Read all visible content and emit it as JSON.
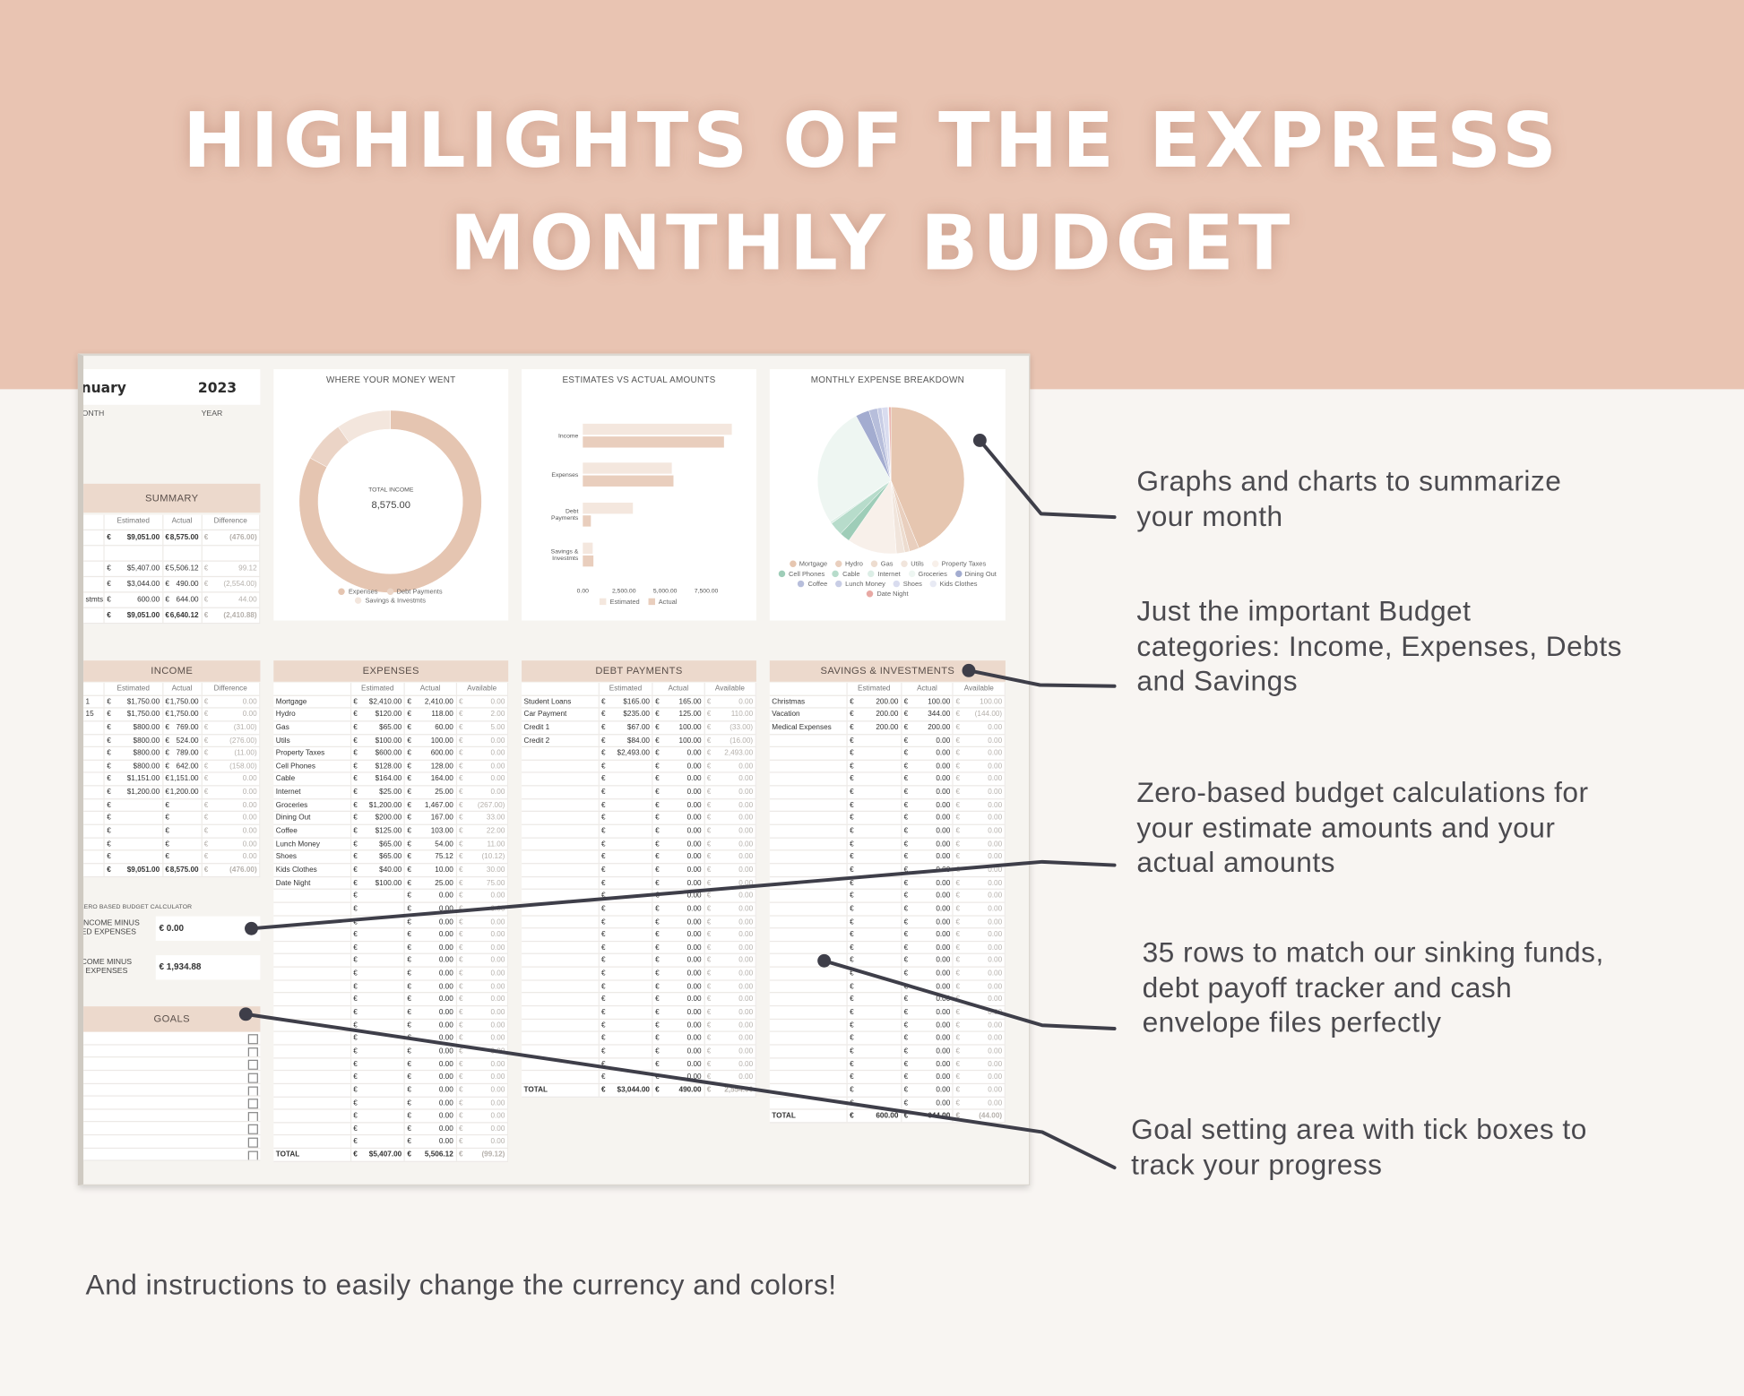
{
  "header": {
    "title_lines": [
      "HIGHLIGHTS OF THE EXPRESS",
      "MONTHLY BUDGET"
    ]
  },
  "sheet": {
    "currency": "€",
    "month": "nuary",
    "month_label": "MONTH",
    "year": "2023",
    "year_label": "YEAR",
    "summary": {
      "title": "SUMMARY",
      "columns": [
        "",
        "Estimated",
        "Actual",
        "Difference"
      ],
      "rows": [
        [
          "",
          "$9,051.00",
          "8,575.00",
          "(476.00)"
        ],
        null,
        [
          "",
          "$5,407.00",
          "5,506.12",
          "99.12"
        ],
        [
          "",
          "$3,044.00",
          "490.00",
          "(2,554.00)"
        ],
        [
          "stmts",
          "600.00",
          "644.00",
          "44.00"
        ],
        [
          "",
          "$9,051.00",
          "6,640.12",
          "(2,410.88)"
        ]
      ]
    },
    "income": {
      "title": "INCOME",
      "columns": [
        "",
        "Estimated",
        "Actual",
        "Difference"
      ],
      "rows": [
        [
          "1",
          "$1,750.00",
          "1,750.00",
          "0.00"
        ],
        [
          "15",
          "$1,750.00",
          "1,750.00",
          "0.00"
        ],
        [
          "",
          "$800.00",
          "769.00",
          "(31.00)"
        ],
        [
          "",
          "$800.00",
          "524.00",
          "(276.00)"
        ],
        [
          "",
          "$800.00",
          "789.00",
          "(11.00)"
        ],
        [
          "",
          "$800.00",
          "642.00",
          "(158.00)"
        ],
        [
          "",
          "$1,151.00",
          "1,151.00",
          "0.00"
        ],
        [
          "",
          "$1,200.00",
          "1,200.00",
          "0.00"
        ],
        [
          "",
          "",
          "",
          "0.00"
        ],
        [
          "",
          "",
          "",
          "0.00"
        ],
        [
          "",
          "",
          "",
          "0.00"
        ],
        [
          "",
          "",
          "",
          "0.00"
        ],
        [
          "",
          "",
          "",
          "0.00"
        ]
      ],
      "total": [
        "",
        "$9,051.00",
        "8,575.00",
        "(476.00)"
      ]
    },
    "zero_based": {
      "title": "ZERO BASED BUDGET CALCULATOR",
      "items": [
        {
          "label_lines": [
            "INCOME MINUS",
            "ED EXPENSES"
          ],
          "value": "€ 0.00"
        },
        {
          "label_lines": [
            "COME MINUS",
            "EXPENSES"
          ],
          "value": "€ 1,934.88"
        }
      ]
    },
    "goals": {
      "title": "GOALS",
      "checkbox_count": 10
    },
    "expenses": {
      "title": "EXPENSES",
      "columns": [
        "",
        "Estimated",
        "Actual",
        "Available"
      ],
      "rows": [
        [
          "Mortgage",
          "$2,410.00",
          "2,410.00",
          "0.00"
        ],
        [
          "Hydro",
          "$120.00",
          "118.00",
          "2.00"
        ],
        [
          "Gas",
          "$65.00",
          "60.00",
          "5.00"
        ],
        [
          "Utils",
          "$100.00",
          "100.00",
          "0.00"
        ],
        [
          "Property Taxes",
          "$600.00",
          "600.00",
          "0.00"
        ],
        [
          "Cell Phones",
          "$128.00",
          "128.00",
          "0.00"
        ],
        [
          "Cable",
          "$164.00",
          "164.00",
          "0.00"
        ],
        [
          "Internet",
          "$25.00",
          "25.00",
          "0.00"
        ],
        [
          "Groceries",
          "$1,200.00",
          "1,467.00",
          "(267.00)"
        ],
        [
          "Dining Out",
          "$200.00",
          "167.00",
          "33.00"
        ],
        [
          "Coffee",
          "$125.00",
          "103.00",
          "22.00"
        ],
        [
          "Lunch Money",
          "$65.00",
          "54.00",
          "11.00"
        ],
        [
          "Shoes",
          "$65.00",
          "75.12",
          "(10.12)"
        ],
        [
          "Kids Clothes",
          "$40.00",
          "10.00",
          "30.00"
        ],
        [
          "Date Night",
          "$100.00",
          "25.00",
          "75.00"
        ],
        [
          "",
          "",
          "0.00",
          "0.00"
        ],
        [
          "",
          "",
          "0.00",
          "0.00"
        ],
        [
          "",
          "",
          "0.00",
          "0.00"
        ],
        [
          "",
          "",
          "0.00",
          "0.00"
        ],
        [
          "",
          "",
          "0.00",
          "0.00"
        ],
        [
          "",
          "",
          "0.00",
          "0.00"
        ],
        [
          "",
          "",
          "0.00",
          "0.00"
        ],
        [
          "",
          "",
          "0.00",
          "0.00"
        ],
        [
          "",
          "",
          "0.00",
          "0.00"
        ],
        [
          "",
          "",
          "0.00",
          "0.00"
        ],
        [
          "",
          "",
          "0.00",
          "0.00"
        ],
        [
          "",
          "",
          "0.00",
          "0.00"
        ],
        [
          "",
          "",
          "0.00",
          "0.00"
        ],
        [
          "",
          "",
          "0.00",
          "0.00"
        ],
        [
          "",
          "",
          "0.00",
          "0.00"
        ],
        [
          "",
          "",
          "0.00",
          "0.00"
        ],
        [
          "",
          "",
          "0.00",
          "0.00"
        ],
        [
          "",
          "",
          "0.00",
          "0.00"
        ],
        [
          "",
          "",
          "0.00",
          "0.00"
        ],
        [
          "",
          "",
          "0.00",
          "0.00"
        ]
      ],
      "total": [
        "TOTAL",
        "$5,407.00",
        "5,506.12",
        "(99.12)"
      ]
    },
    "debt": {
      "title": "DEBT PAYMENTS",
      "columns": [
        "",
        "Estimated",
        "Actual",
        "Available"
      ],
      "rows": [
        [
          "Student Loans",
          "$165.00",
          "165.00",
          "0.00"
        ],
        [
          "Car Payment",
          "$235.00",
          "125.00",
          "110.00"
        ],
        [
          "Credit 1",
          "$67.00",
          "100.00",
          "(33.00)"
        ],
        [
          "Credit 2",
          "$84.00",
          "100.00",
          "(16.00)"
        ],
        [
          "",
          "$2,493.00",
          "0.00",
          "2,493.00"
        ],
        [
          "",
          "",
          "0.00",
          "0.00"
        ],
        [
          "",
          "",
          "0.00",
          "0.00"
        ],
        [
          "",
          "",
          "0.00",
          "0.00"
        ],
        [
          "",
          "",
          "0.00",
          "0.00"
        ],
        [
          "",
          "",
          "0.00",
          "0.00"
        ],
        [
          "",
          "",
          "0.00",
          "0.00"
        ],
        [
          "",
          "",
          "0.00",
          "0.00"
        ],
        [
          "",
          "",
          "0.00",
          "0.00"
        ],
        [
          "",
          "",
          "0.00",
          "0.00"
        ],
        [
          "",
          "",
          "0.00",
          "0.00"
        ],
        [
          "",
          "",
          "0.00",
          "0.00"
        ],
        [
          "",
          "",
          "0.00",
          "0.00"
        ],
        [
          "",
          "",
          "0.00",
          "0.00"
        ],
        [
          "",
          "",
          "0.00",
          "0.00"
        ],
        [
          "",
          "",
          "0.00",
          "0.00"
        ],
        [
          "",
          "",
          "0.00",
          "0.00"
        ],
        [
          "",
          "",
          "0.00",
          "0.00"
        ],
        [
          "",
          "",
          "0.00",
          "0.00"
        ],
        [
          "",
          "",
          "0.00",
          "0.00"
        ],
        [
          "",
          "",
          "0.00",
          "0.00"
        ],
        [
          "",
          "",
          "0.00",
          "0.00"
        ],
        [
          "",
          "",
          "0.00",
          "0.00"
        ],
        [
          "",
          "",
          "0.00",
          "0.00"
        ],
        [
          "",
          "",
          "0.00",
          "0.00"
        ],
        [
          "",
          "",
          "0.00",
          "0.00"
        ]
      ],
      "total": [
        "TOTAL",
        "$3,044.00",
        "490.00",
        "2,554.00"
      ]
    },
    "savings": {
      "title": "SAVINGS & INVESTMENTS",
      "columns": [
        "",
        "Estimated",
        "Actual",
        "Available"
      ],
      "rows": [
        [
          "Christmas",
          "200.00",
          "100.00",
          "100.00"
        ],
        [
          "Vacation",
          "200.00",
          "344.00",
          "(144.00)"
        ],
        [
          "Medical Expenses",
          "200.00",
          "200.00",
          "0.00"
        ],
        [
          "",
          "",
          "0.00",
          "0.00"
        ],
        [
          "",
          "",
          "0.00",
          "0.00"
        ],
        [
          "",
          "",
          "0.00",
          "0.00"
        ],
        [
          "",
          "",
          "0.00",
          "0.00"
        ],
        [
          "",
          "",
          "0.00",
          "0.00"
        ],
        [
          "",
          "",
          "0.00",
          "0.00"
        ],
        [
          "",
          "",
          "0.00",
          "0.00"
        ],
        [
          "",
          "",
          "0.00",
          "0.00"
        ],
        [
          "",
          "",
          "0.00",
          "0.00"
        ],
        [
          "",
          "",
          "0.00",
          "0.00"
        ],
        [
          "",
          "",
          "0.00",
          "0.00"
        ],
        [
          "",
          "",
          "0.00",
          "0.00"
        ],
        [
          "",
          "",
          "0.00",
          "0.00"
        ],
        [
          "",
          "",
          "0.00",
          "0.00"
        ],
        [
          "",
          "",
          "0.00",
          "0.00"
        ],
        [
          "",
          "",
          "0.00",
          "0.00"
        ],
        [
          "",
          "",
          "0.00",
          "0.00"
        ],
        [
          "",
          "",
          "0.00",
          "0.00"
        ],
        [
          "",
          "",
          "0.00",
          "0.00"
        ],
        [
          "",
          "",
          "0.00",
          "0.00"
        ],
        [
          "",
          "",
          "0.00",
          "0.00"
        ],
        [
          "",
          "",
          "0.00",
          "0.00"
        ],
        [
          "",
          "",
          "0.00",
          "0.00"
        ],
        [
          "",
          "",
          "0.00",
          "0.00"
        ],
        [
          "",
          "",
          "0.00",
          "0.00"
        ],
        [
          "",
          "",
          "0.00",
          "0.00"
        ],
        [
          "",
          "",
          "0.00",
          "0.00"
        ],
        [
          "",
          "",
          "0.00",
          "0.00"
        ],
        [
          "",
          "",
          "0.00",
          "0.00"
        ]
      ],
      "total": [
        "TOTAL",
        "600.00",
        "644.00",
        "(44.00)"
      ]
    }
  },
  "chart_data": [
    {
      "type": "pie",
      "title": "WHERE YOUR MONEY WENT",
      "center_label": "TOTAL INCOME",
      "center_value": "8,575.00",
      "labels": [
        "Expenses",
        "Debt Payments",
        "Savings & Investmts"
      ],
      "values": [
        5506.12,
        490,
        644
      ],
      "colors": [
        "#e5c5b1",
        "#ebd4c6",
        "#f3e6dd"
      ],
      "legend": "bottom"
    },
    {
      "type": "bar",
      "title": "ESTIMATES VS ACTUAL AMOUNTS",
      "categories": [
        [
          "Income"
        ],
        [
          "Expenses"
        ],
        [
          "Debt",
          "Payments"
        ],
        [
          "Savings &",
          "Investmts"
        ]
      ],
      "series": [
        {
          "name": "Estimated",
          "values": [
            9051,
            5407,
            3044,
            600
          ],
          "color": "#f4e7de"
        },
        {
          "name": "Actual",
          "values": [
            8575,
            5506.12,
            490,
            644
          ],
          "color": "#e9cebd"
        }
      ],
      "xticks": [
        "0.00",
        "2,500.00",
        "5,000.00",
        "7,500.00"
      ],
      "xtick_values": [
        0,
        2500,
        5000,
        7500
      ],
      "orientation": "horizontal",
      "legend": "bottom"
    },
    {
      "type": "pie",
      "title": "MONTHLY EXPENSE BREAKDOWN",
      "labels": [
        "Mortgage",
        "Hydro",
        "Gas",
        "Utils",
        "Property Taxes",
        "Cell Phones",
        "Cable",
        "Internet",
        "Groceries",
        "Dining Out",
        "Coffee",
        "Lunch Money",
        "Shoes",
        "Kids Clothes",
        "Date Night"
      ],
      "values": [
        2410,
        118,
        60,
        100,
        600,
        128,
        164,
        25,
        1467,
        167,
        103,
        54,
        75.12,
        10,
        25
      ],
      "colors": [
        "#e6c6b0",
        "#e9cfbe",
        "#eddccf",
        "#f1e5dc",
        "#f8f0ea",
        "#9ecdb8",
        "#b7dccb",
        "#dceee6",
        "#eef6f2",
        "#a3acd0",
        "#b7bedb",
        "#c8cde5",
        "#d9dcef",
        "#e8eaf4",
        "#e8a9a4"
      ],
      "legend": "bottom"
    }
  ],
  "annotations": [
    {
      "lines": [
        "Graphs and charts to summarize",
        "your month"
      ]
    },
    {
      "lines": [
        "Just the important Budget",
        "categories: Income, Expenses, Debts",
        "and Savings"
      ]
    },
    {
      "lines": [
        "Zero-based budget calculations for",
        "your estimate amounts and your",
        "actual amounts"
      ]
    },
    {
      "lines": [
        "35 rows to match our sinking funds,",
        "debt payoff tracker and cash",
        "envelope files perfectly"
      ]
    },
    {
      "lines": [
        "Goal setting area with tick boxes to",
        "track your progress"
      ]
    }
  ],
  "footer": {
    "note": "And instructions to easily change the currency and colors!"
  }
}
